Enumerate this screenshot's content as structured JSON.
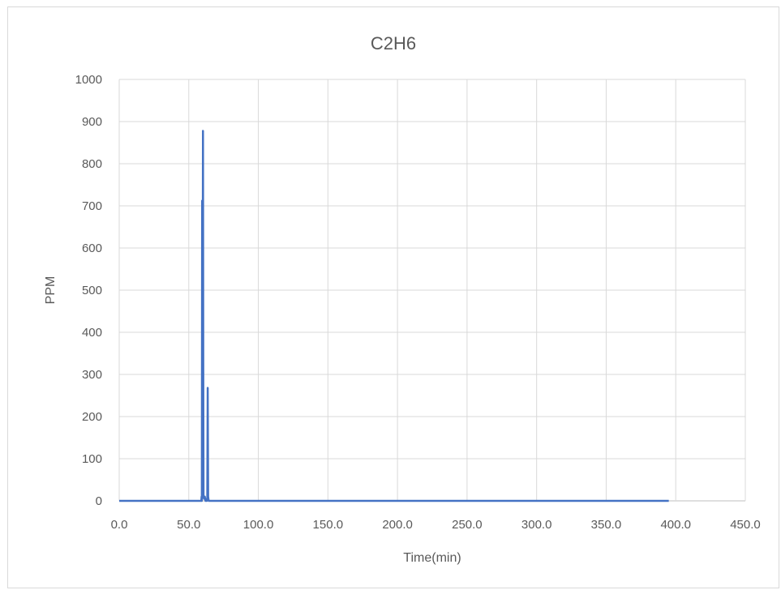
{
  "chart_data": {
    "type": "line",
    "title": "C2H6",
    "xlabel": "Time(min)",
    "ylabel": "PPM",
    "xlim": [
      0,
      450
    ],
    "ylim": [
      0,
      1000
    ],
    "x_ticks": [
      "0.0",
      "50.0",
      "100.0",
      "150.0",
      "200.0",
      "250.0",
      "300.0",
      "350.0",
      "400.0",
      "450.0"
    ],
    "y_ticks": [
      "0",
      "100",
      "200",
      "300",
      "400",
      "500",
      "600",
      "700",
      "800",
      "900",
      "1000"
    ],
    "grid": true,
    "legend": "none",
    "series": [
      {
        "color": "#4472c4",
        "points": [
          [
            0,
            0
          ],
          [
            59.0,
            0
          ],
          [
            59.2,
            10
          ],
          [
            59.4,
            0
          ],
          [
            59.6,
            712
          ],
          [
            59.8,
            10
          ],
          [
            60.2,
            878
          ],
          [
            60.4,
            320
          ],
          [
            60.6,
            10
          ],
          [
            61.0,
            5
          ],
          [
            61.5,
            10
          ],
          [
            62.0,
            0
          ],
          [
            63.0,
            0
          ],
          [
            63.3,
            8
          ],
          [
            63.6,
            268
          ],
          [
            63.9,
            10
          ],
          [
            64.3,
            0
          ],
          [
            395,
            0
          ]
        ]
      }
    ]
  }
}
